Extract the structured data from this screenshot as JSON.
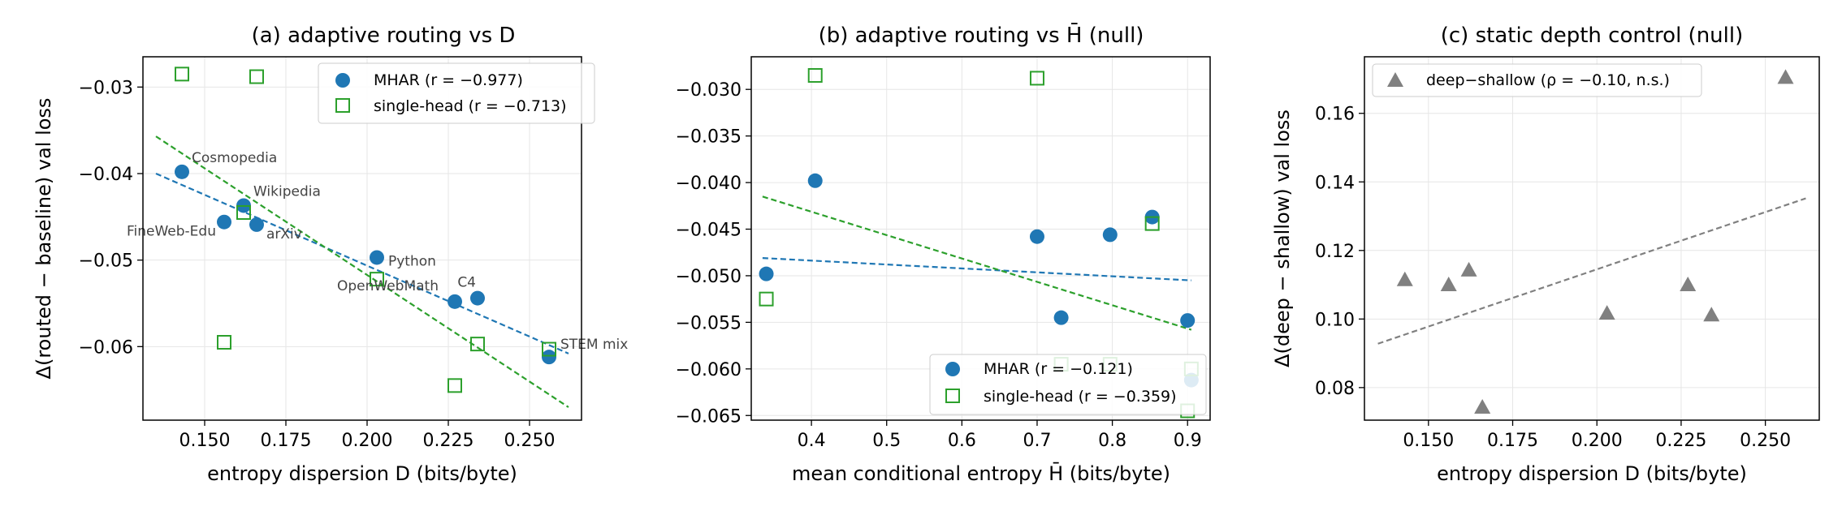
{
  "colors": {
    "mhar": "#1f77b4",
    "single": "#2ca02c",
    "deep": "#808080",
    "grid": "#e6e6e6"
  },
  "chart_data": [
    {
      "type": "scatter",
      "title": "(a) adaptive routing vs D",
      "xlabel": "entropy dispersion D (bits/byte)",
      "ylabel": "Δ(routed − baseline) val loss",
      "xlim": [
        0.131,
        0.266
      ],
      "ylim": [
        -0.0685,
        -0.0265
      ],
      "xticks": [
        0.15,
        0.175,
        0.2,
        0.225,
        0.25
      ],
      "xtick_labels": [
        "0.150",
        "0.175",
        "0.200",
        "0.225",
        "0.250"
      ],
      "yticks": [
        -0.06,
        -0.05,
        -0.04,
        -0.03
      ],
      "ytick_labels": [
        "−0.06",
        "−0.05",
        "−0.04",
        "−0.03"
      ],
      "grid": true,
      "legend_position": "top-right",
      "series": [
        {
          "name": "MHAR (r = −0.977)",
          "marker": "circle",
          "color": "#1f77b4",
          "x": [
            0.143,
            0.156,
            0.162,
            0.166,
            0.203,
            0.227,
            0.234,
            0.256
          ],
          "y": [
            -0.0398,
            -0.0456,
            -0.0437,
            -0.0459,
            -0.0497,
            -0.0548,
            -0.0544,
            -0.0612
          ],
          "fit": {
            "x": [
              0.135,
              0.262
            ],
            "y": [
              -0.04,
              -0.0608
            ]
          }
        },
        {
          "name": "single-head (r = −0.713)",
          "marker": "square",
          "color": "#2ca02c",
          "x": [
            0.143,
            0.156,
            0.162,
            0.166,
            0.203,
            0.227,
            0.234,
            0.256
          ],
          "y": [
            -0.0285,
            -0.0595,
            -0.0445,
            -0.0288,
            -0.0522,
            -0.0645,
            -0.0597,
            -0.0603
          ],
          "fit": {
            "x": [
              0.135,
              0.262
            ],
            "y": [
              -0.0357,
              -0.067
            ]
          }
        }
      ],
      "annotations": [
        {
          "text": "Cosmopedia",
          "x": 0.143,
          "y": -0.0398
        },
        {
          "text": "Wikipedia",
          "x": 0.162,
          "y": -0.0437
        },
        {
          "text": "FineWeb-Edu",
          "x": 0.156,
          "y": -0.0456
        },
        {
          "text": "arXiv",
          "x": 0.166,
          "y": -0.0459
        },
        {
          "text": "Python",
          "x": 0.203,
          "y": -0.0497
        },
        {
          "text": "OpenWebMath",
          "x": 0.227,
          "y": -0.0548
        },
        {
          "text": "C4",
          "x": 0.234,
          "y": -0.0544
        },
        {
          "text": "STEM mix",
          "x": 0.256,
          "y": -0.0612
        }
      ]
    },
    {
      "type": "scatter",
      "title": "(b) adaptive routing vs H̄ (null)",
      "xlabel": "mean conditional entropy H̄ (bits/byte)",
      "ylabel": "",
      "xlim": [
        0.32,
        0.93
      ],
      "ylim": [
        -0.0655,
        -0.0265
      ],
      "xticks": [
        0.4,
        0.5,
        0.6,
        0.7,
        0.8,
        0.9
      ],
      "xtick_labels": [
        "0.4",
        "0.5",
        "0.6",
        "0.7",
        "0.8",
        "0.9"
      ],
      "yticks": [
        -0.065,
        -0.06,
        -0.055,
        -0.05,
        -0.045,
        -0.04,
        -0.035,
        -0.03
      ],
      "ytick_labels": [
        "−0.065",
        "−0.060",
        "−0.055",
        "−0.050",
        "−0.045",
        "−0.040",
        "−0.035",
        "−0.030"
      ],
      "grid": true,
      "legend_position": "bottom-right",
      "series": [
        {
          "name": "MHAR (r = −0.121)",
          "marker": "circle",
          "color": "#1f77b4",
          "x": [
            0.34,
            0.405,
            0.7,
            0.732,
            0.797,
            0.853,
            0.9,
            0.905
          ],
          "y": [
            -0.0498,
            -0.0398,
            -0.0458,
            -0.0545,
            -0.0456,
            -0.0437,
            -0.0548,
            -0.0612
          ],
          "fit": {
            "x": [
              0.335,
              0.905
            ],
            "y": [
              -0.0481,
              -0.0505
            ]
          }
        },
        {
          "name": "single-head (r = −0.359)",
          "marker": "square",
          "color": "#2ca02c",
          "x": [
            0.34,
            0.405,
            0.7,
            0.732,
            0.797,
            0.853,
            0.9,
            0.905
          ],
          "y": [
            -0.0525,
            -0.0285,
            -0.0288,
            -0.0595,
            -0.0595,
            -0.0444,
            -0.0645,
            -0.06
          ],
          "fit": {
            "x": [
              0.335,
              0.905
            ],
            "y": [
              -0.0415,
              -0.0558
            ]
          }
        }
      ],
      "annotations": []
    },
    {
      "type": "scatter",
      "title": "(c) static depth control (null)",
      "xlabel": "entropy dispersion D (bits/byte)",
      "ylabel": "Δ(deep − shallow) val loss",
      "xlim": [
        0.131,
        0.266
      ],
      "ylim": [
        0.0705,
        0.1765
      ],
      "xticks": [
        0.15,
        0.175,
        0.2,
        0.225,
        0.25
      ],
      "xtick_labels": [
        "0.150",
        "0.175",
        "0.200",
        "0.225",
        "0.250"
      ],
      "yticks": [
        0.08,
        0.1,
        0.12,
        0.14,
        0.16
      ],
      "ytick_labels": [
        "0.08",
        "0.10",
        "0.12",
        "0.14",
        "0.16"
      ],
      "grid": true,
      "legend_position": "top-left",
      "series": [
        {
          "name": "deep−shallow (ρ = −0.10, n.s.)",
          "marker": "triangle",
          "color": "#808080",
          "x": [
            0.143,
            0.156,
            0.162,
            0.166,
            0.203,
            0.227,
            0.234,
            0.256
          ],
          "y": [
            0.1115,
            0.11,
            0.1143,
            0.0743,
            0.1017,
            0.11,
            0.1012,
            0.1705
          ],
          "fit": {
            "x": [
              0.135,
              0.262
            ],
            "y": [
              0.0928,
              0.1352
            ]
          }
        }
      ],
      "annotations": []
    }
  ]
}
